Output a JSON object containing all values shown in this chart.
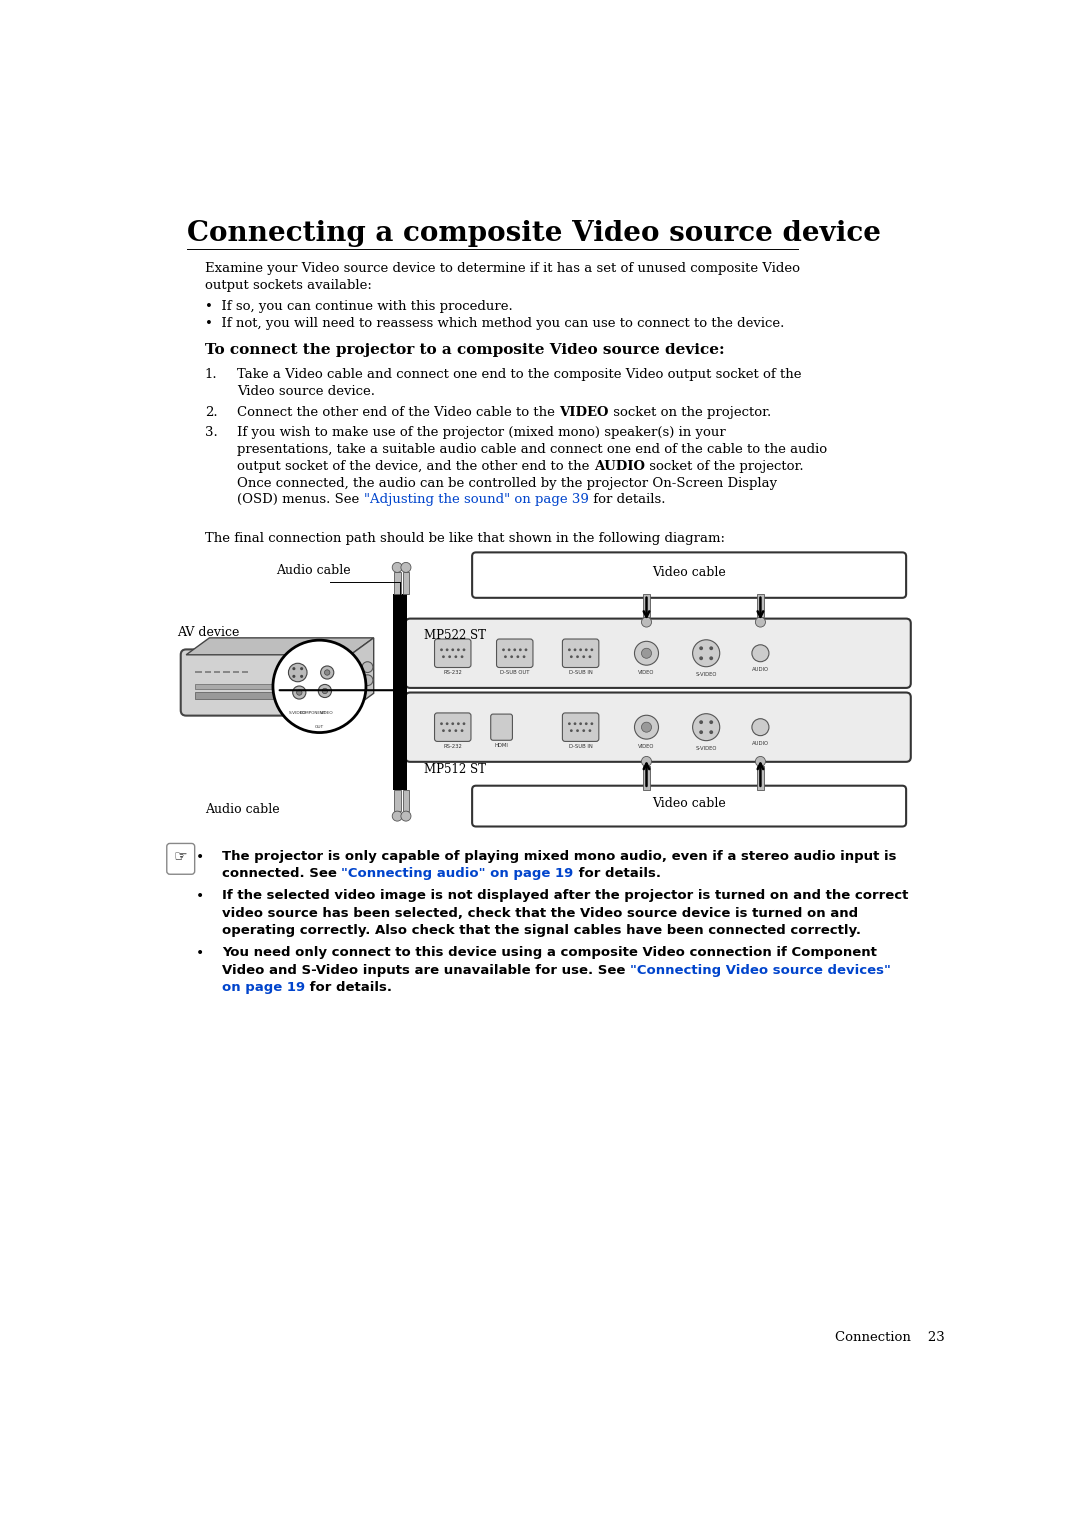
{
  "title": "Connecting a composite Video source device",
  "bg_color": "#ffffff",
  "text_color": "#000000",
  "link_color": "#0044cc",
  "page_width": 10.8,
  "page_height": 15.29,
  "title_fontsize": 20,
  "body_fontsize": 9.5,
  "subtitle_fontsize": 11,
  "notes_fontsize": 9.5,
  "footer_text": "Connection    23",
  "para1_line1": "Examine your Video source device to determine if it has a set of unused composite Video",
  "para1_line2": "output sockets available:",
  "bullet1": "If so, you can continue with this procedure.",
  "bullet2": "If not, you will need to reassess which method you can use to connect to the device.",
  "subtitle": "To connect the projector to a composite Video source device:",
  "step1_l1": "Take a Video cable and connect one end to the composite Video output socket of the",
  "step1_l2": "Video source device.",
  "step2_pre": "Connect the other end of the Video cable to the ",
  "step2_bold": "VIDEO",
  "step2_end": " socket on the projector.",
  "step3_l1": "If you wish to make use of the projector (mixed mono) speaker(s) in your",
  "step3_l2": "presentations, take a suitable audio cable and connect one end of the cable to the audio",
  "step3_l3_pre": "output socket of the device, and the other end to the ",
  "step3_l3_bold": "AUDIO",
  "step3_l3_end": " socket of the projector.",
  "step3_l4": "Once connected, the audio can be controlled by the projector On-Screen Display",
  "step3_l5_pre": "(OSD) menus. See ",
  "step3_l5_link": "\"Adjusting the sound\" on page 39",
  "step3_l5_end": " for details.",
  "diagram_intro": "The final connection path should be like that shown in the following diagram:",
  "lbl_audio_top": "Audio cable",
  "lbl_video_top": "Video cable",
  "lbl_av_device": "AV device",
  "lbl_mp522": "MP522 ST",
  "lbl_mp512": "MP512 ST",
  "lbl_audio_bot": "Audio cable",
  "lbl_video_bot": "Video cable",
  "note1_l1": "The projector is only capable of playing mixed mono audio, even if a stereo audio input is",
  "note1_l2_pre": "connected. See ",
  "note1_l2_link": "\"Connecting audio\" on page 19",
  "note1_l2_end": " for details.",
  "note2_l1": "If the selected video image is not displayed after the projector is turned on and the correct",
  "note2_l2": "video source has been selected, check that the Video source device is turned on and",
  "note2_l3": "operating correctly. Also check that the signal cables have been connected correctly.",
  "note3_l1": "You need only connect to this device using a composite Video connection if Component",
  "note3_l2_pre": "Video and S-Video inputs are unavailable for use. See ",
  "note3_l2_link": "\"Connecting Video source devices\"",
  "note3_l3_link": "on page 19",
  "note3_l3_end": " for details."
}
